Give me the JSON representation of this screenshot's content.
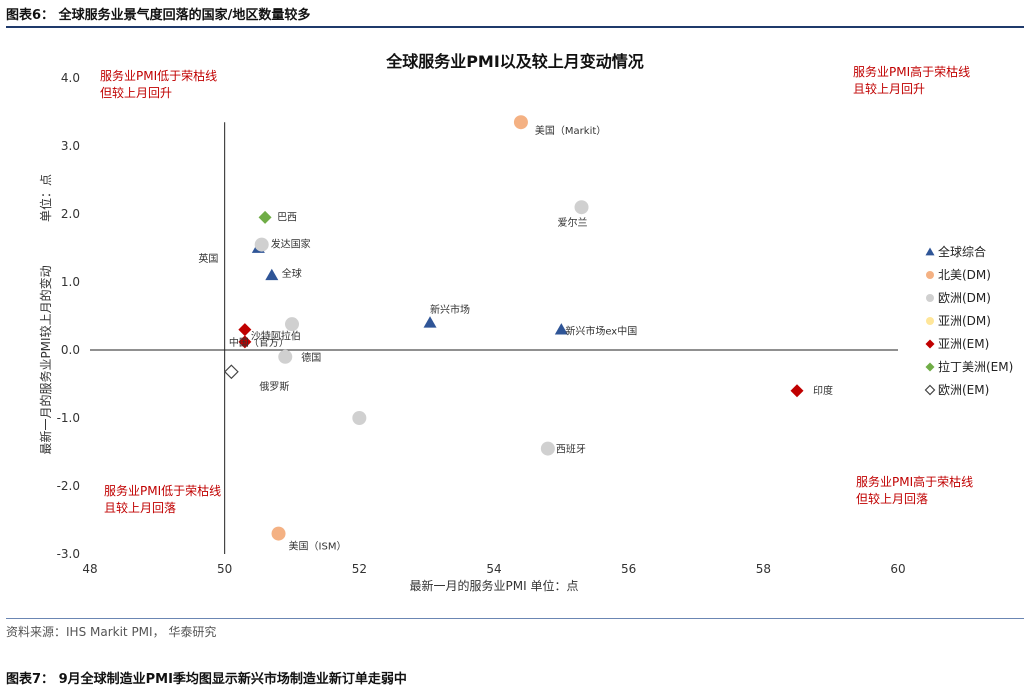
{
  "figure_title": "图表6：  全球服务业景气度回落的国家/地区数量较多",
  "source": "资料来源：IHS Markit PMI， 华泰研究",
  "next_figure_title": "图表7：  9月全球制造业PMI季均图显示新兴市场制造业新订单走弱中",
  "chart_data": {
    "type": "scatter",
    "title": "全球服务业PMI以及较上月变动情况",
    "xlabel": "最新一月的服务业PMI      单位：点",
    "ylabel": "最新一月的服务业PMI较上月的变动",
    "ylabel_unit": "单位：点",
    "xlim": [
      48,
      60
    ],
    "ylim": [
      -3.0,
      4.0
    ],
    "x_ticks": [
      "48",
      "50",
      "52",
      "54",
      "56",
      "58",
      "60"
    ],
    "y_ticks": [
      "4.0",
      "3.0",
      "2.0",
      "1.0",
      "0.0",
      "-1.0",
      "-2.0",
      "-3.0"
    ],
    "reference_x": 50,
    "quadrant_notes": {
      "top_left": [
        "服务业PMI低于荣枯线",
        "但较上月回升"
      ],
      "top_right": [
        "服务业PMI高于荣枯线",
        "且较上月回升"
      ],
      "bottom_left": [
        "服务业PMI低于荣枯线",
        "且较上月回落"
      ],
      "bottom_right": [
        "服务业PMI高于荣枯线",
        "但较上月回落"
      ]
    },
    "legend_position": "right",
    "series": [
      {
        "name": "全球综合",
        "marker": "triangle",
        "color": "#2f5597",
        "points": [
          {
            "label": "英国",
            "x": 50.5,
            "y": 1.5
          },
          {
            "label": "全球",
            "x": 50.7,
            "y": 1.1
          },
          {
            "label": "新兴市场",
            "x": 53.05,
            "y": 0.4
          },
          {
            "label": "新兴市场ex中国",
            "x": 55.0,
            "y": 0.3
          }
        ]
      },
      {
        "name": "北美(DM)",
        "marker": "circle",
        "color": "#f4b183",
        "points": [
          {
            "label": "美国（Markit）",
            "x": 54.4,
            "y": 3.35
          },
          {
            "label": "美国（ISM）",
            "x": 50.8,
            "y": -2.7
          }
        ]
      },
      {
        "name": "欧洲(DM)",
        "marker": "circle",
        "color": "#d0d0d0",
        "points": [
          {
            "label": "爱尔兰",
            "x": 55.3,
            "y": 2.1
          },
          {
            "label": "发达国家",
            "x": 50.55,
            "y": 1.55
          },
          {
            "label": "",
            "x": 51.0,
            "y": 0.38
          },
          {
            "label": "德国",
            "x": 50.9,
            "y": -0.1
          },
          {
            "label": "",
            "x": 52.0,
            "y": -1.0
          },
          {
            "label": "西班牙",
            "x": 54.8,
            "y": -1.45
          }
        ]
      },
      {
        "name": "亚洲(DM)",
        "marker": "circle",
        "color": "#ffe699",
        "points": []
      },
      {
        "name": "亚洲(EM)",
        "marker": "diamond",
        "color": "#c00000",
        "points": [
          {
            "label": "沙特阿拉伯",
            "x": 50.3,
            "y": 0.3
          },
          {
            "label": "中国（官方）",
            "x": 50.3,
            "y": 0.12
          },
          {
            "label": "印度",
            "x": 58.5,
            "y": -0.6
          }
        ]
      },
      {
        "name": "拉丁美洲(EM)",
        "marker": "diamond",
        "color": "#70ad47",
        "points": [
          {
            "label": "巴西",
            "x": 50.6,
            "y": 1.95
          }
        ]
      },
      {
        "name": "欧洲(EM)",
        "marker": "diamond-open",
        "color": "#444444",
        "points": [
          {
            "label": "俄罗斯",
            "x": 50.1,
            "y": -0.32
          }
        ]
      }
    ]
  }
}
